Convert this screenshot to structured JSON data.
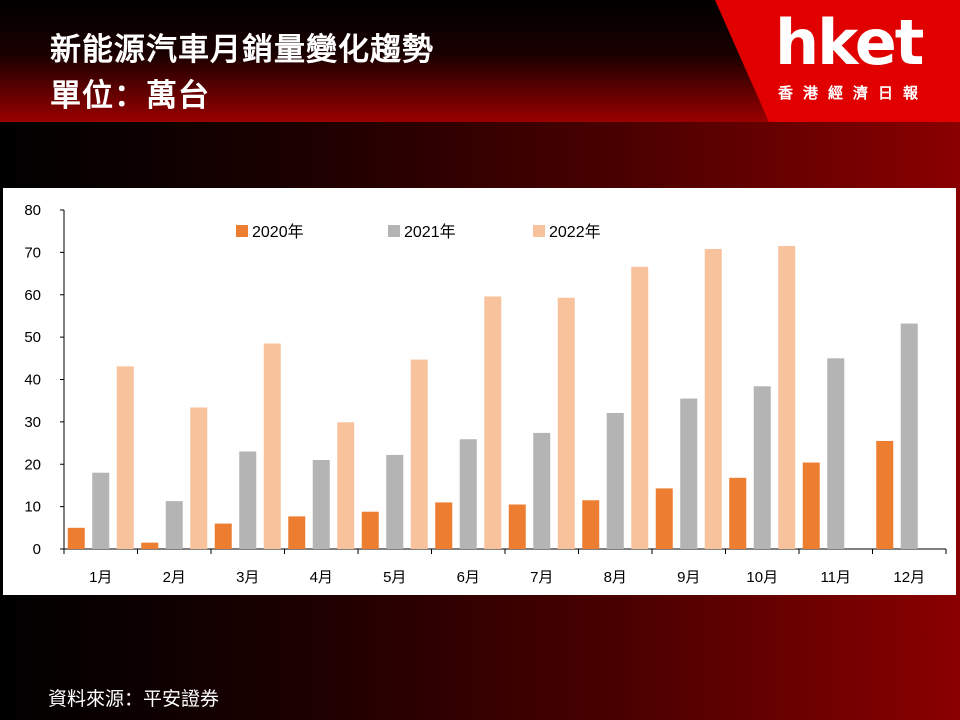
{
  "header": {
    "title_line1": "新能源汽車月銷量變化趨勢",
    "title_line2": "單位：萬台",
    "logo": "hket",
    "logo_sub": "香港經濟日報"
  },
  "source_text": "資料來源：平安證券",
  "colors": {
    "2020": "#ed7d31",
    "2021": "#b4b4b4",
    "2022": "#f8c29c"
  },
  "chart_data": {
    "type": "bar",
    "categories": [
      "1月",
      "2月",
      "3月",
      "4月",
      "5月",
      "6月",
      "7月",
      "8月",
      "9月",
      "10月",
      "11月",
      "12月"
    ],
    "series": [
      {
        "name": "2020年",
        "values": [
          5,
          1.5,
          6,
          7.7,
          8.8,
          11,
          10.5,
          11.5,
          14.3,
          16.8,
          20.4,
          25.5
        ]
      },
      {
        "name": "2021年",
        "values": [
          18,
          11.3,
          23,
          21,
          22.2,
          25.9,
          27.4,
          32.1,
          35.5,
          38.4,
          45,
          53.2
        ]
      },
      {
        "name": "2022年",
        "values": [
          43.1,
          33.4,
          48.5,
          29.9,
          44.7,
          59.6,
          59.3,
          66.6,
          70.8,
          71.5,
          null,
          null
        ]
      }
    ],
    "ylim": [
      0,
      80
    ],
    "yticks": [
      0,
      10,
      20,
      30,
      40,
      50,
      60,
      70,
      80
    ],
    "legend_position": "top-center",
    "grid": false
  }
}
